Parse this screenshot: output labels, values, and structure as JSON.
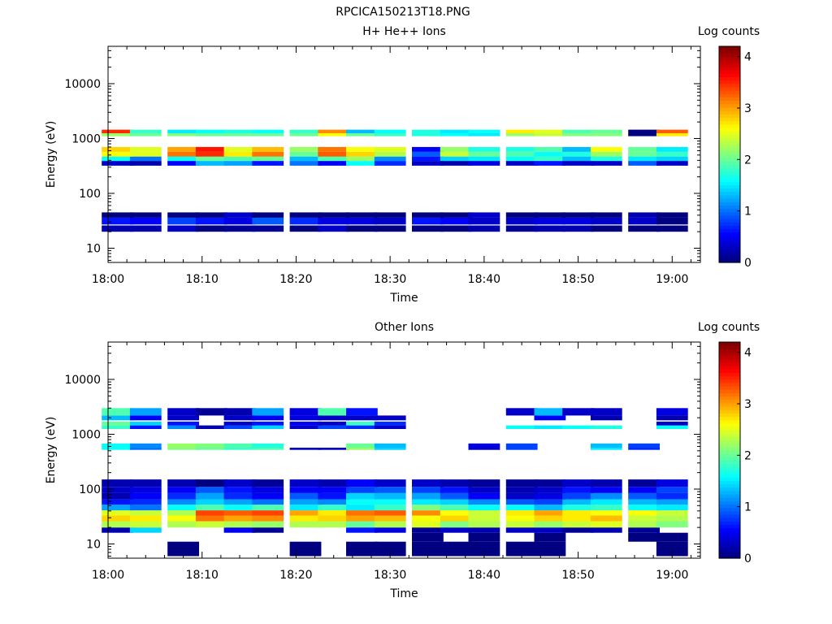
{
  "figure_title": "RPCICA150213T18.PNG",
  "chart_data": [
    {
      "type": "heatmap",
      "title": "H+ He++ Ions",
      "xlabel": "Time",
      "ylabel": "Energy (eV)",
      "x_ticks": [
        "18:00",
        "18:10",
        "18:20",
        "18:30",
        "18:40",
        "18:50",
        "19:00"
      ],
      "x_range": [
        "18:00",
        "19:03"
      ],
      "y_scale": "log",
      "y_ticks": [
        "10",
        "100",
        "1000",
        "10000"
      ],
      "y_range": [
        5.5,
        48000
      ],
      "colorbar": {
        "label": "Log counts",
        "ticks": [
          "0",
          "1",
          "2",
          "3",
          "4"
        ],
        "range": [
          0,
          4.2
        ]
      },
      "time_bins": [
        "18:01",
        "18:04",
        "18:08",
        "18:11",
        "18:14",
        "18:17",
        "18:21",
        "18:24",
        "18:27",
        "18:30",
        "18:34",
        "18:37",
        "18:40",
        "18:44",
        "18:47",
        "18:50",
        "18:53",
        "18:57",
        "19:00"
      ],
      "bands": [
        {
          "emin": 20,
          "emax": 26,
          "values": [
            0.2,
            0.2,
            0.3,
            0.0,
            0.1,
            0.1,
            0.0,
            0.3,
            0.0,
            0.0,
            0.0,
            0.0,
            0.2,
            0.1,
            0.2,
            0.2,
            0.0,
            0.0,
            0.0
          ]
        },
        {
          "emin": 27,
          "emax": 36,
          "values": [
            0.6,
            0.5,
            0.8,
            0.6,
            0.4,
            0.9,
            0.7,
            0.4,
            0.4,
            0.3,
            0.6,
            0.5,
            0.3,
            0.3,
            0.4,
            0.4,
            0.3,
            0.3,
            0.0
          ]
        },
        {
          "emin": 36,
          "emax": 45,
          "values": [
            0.0,
            0.0,
            0.0,
            0.0,
            0.3,
            0.0,
            0.0,
            0.0,
            0.0,
            0.0,
            0.0,
            0.0,
            0.3,
            0.0,
            0.0,
            0.0,
            0.0,
            0.2,
            0.0
          ]
        },
        {
          "emin": 320,
          "emax": 390,
          "values": [
            0.3,
            0.2,
            0.5,
            1.3,
            1.2,
            0.6,
            1.0,
            0.5,
            1.6,
            0.7,
            0.3,
            0.2,
            0.4,
            0.3,
            0.6,
            0.3,
            0.3,
            0.9,
            0.3
          ]
        },
        {
          "emin": 390,
          "emax": 470,
          "values": [
            1.6,
            1.0,
            1.6,
            2.0,
            1.9,
            2.0,
            1.3,
            1.9,
            2.2,
            1.1,
            0.6,
            1.4,
            1.5,
            1.6,
            1.8,
            1.3,
            1.7,
            1.5,
            1.4
          ]
        },
        {
          "emin": 470,
          "emax": 570,
          "values": [
            2.6,
            2.5,
            3.2,
            3.5,
            2.7,
            3.2,
            2.0,
            3.3,
            2.8,
            2.3,
            0.9,
            2.4,
            2.0,
            1.9,
            1.6,
            1.7,
            2.2,
            2.0,
            1.8
          ]
        },
        {
          "emin": 570,
          "emax": 700,
          "values": [
            2.8,
            2.5,
            3.0,
            3.6,
            2.5,
            2.9,
            2.2,
            3.2,
            2.6,
            2.5,
            0.5,
            2.2,
            1.7,
            1.7,
            1.9,
            1.3,
            2.6,
            2.0,
            1.5
          ]
        },
        {
          "emin": 1100,
          "emax": 1250,
          "values": [
            2.2,
            2.0,
            2.1,
            2.0,
            2.0,
            2.0,
            2.0,
            2.6,
            2.0,
            1.8,
            1.7,
            1.6,
            1.5,
            2.2,
            2.4,
            2.1,
            2.1,
            0.0,
            2.7
          ]
        },
        {
          "emin": 1250,
          "emax": 1450,
          "values": [
            3.5,
            1.8,
            1.5,
            1.6,
            1.7,
            1.6,
            1.8,
            3.1,
            1.3,
            1.6,
            1.7,
            1.5,
            1.6,
            2.7,
            2.5,
            1.9,
            2.0,
            0.0,
            3.3
          ]
        }
      ]
    },
    {
      "type": "heatmap",
      "title": "Other Ions",
      "xlabel": "Time",
      "ylabel": "Energy (eV)",
      "x_ticks": [
        "18:00",
        "18:10",
        "18:20",
        "18:30",
        "18:40",
        "18:50",
        "19:00"
      ],
      "x_range": [
        "18:00",
        "19:03"
      ],
      "y_scale": "log",
      "y_ticks": [
        "10",
        "100",
        "1000",
        "10000"
      ],
      "y_range": [
        5.5,
        48000
      ],
      "colorbar": {
        "label": "Log counts",
        "ticks": [
          "0",
          "1",
          "2",
          "3",
          "4"
        ],
        "range": [
          0,
          4.2
        ]
      },
      "time_bins": [
        "18:01",
        "18:04",
        "18:08",
        "18:11",
        "18:14",
        "18:17",
        "18:21",
        "18:24",
        "18:27",
        "18:30",
        "18:34",
        "18:37",
        "18:40",
        "18:44",
        "18:47",
        "18:50",
        "18:53",
        "18:57",
        "19:00"
      ],
      "bands": [
        {
          "emin": 6,
          "emax": 11,
          "values": [
            null,
            null,
            0.0,
            null,
            null,
            null,
            0.0,
            null,
            0.0,
            0.0,
            0.0,
            0.0,
            0.0,
            0.0,
            0.0,
            null,
            null,
            null,
            0.0
          ]
        },
        {
          "emin": 11,
          "emax": 16,
          "values": [
            null,
            null,
            null,
            null,
            null,
            null,
            null,
            null,
            null,
            null,
            0.0,
            null,
            0.0,
            null,
            0.0,
            null,
            null,
            0.0,
            0.0
          ]
        },
        {
          "emin": 16,
          "emax": 20,
          "values": [
            0.2,
            1.4,
            null,
            null,
            0.5,
            0.1,
            null,
            null,
            0.6,
            0.4,
            0.1,
            0.3,
            0.2,
            0.3,
            0.3,
            0.1,
            0.2,
            0.1,
            null
          ]
        },
        {
          "emin": 20,
          "emax": 26,
          "values": [
            2.3,
            2.4,
            2.3,
            2.4,
            2.3,
            2.2,
            2.3,
            2.3,
            2.0,
            2.3,
            2.5,
            2.1,
            2.3,
            2.4,
            2.2,
            2.4,
            2.5,
            2.3,
            2.1
          ]
        },
        {
          "emin": 26,
          "emax": 33,
          "values": [
            2.8,
            2.7,
            2.6,
            3.2,
            3.0,
            3.1,
            2.7,
            2.8,
            3.0,
            2.9,
            2.6,
            2.8,
            2.4,
            2.6,
            2.8,
            2.7,
            2.9,
            2.4,
            2.3
          ]
        },
        {
          "emin": 33,
          "emax": 41,
          "values": [
            2.5,
            2.4,
            2.3,
            3.4,
            3.3,
            3.4,
            3.0,
            2.7,
            3.2,
            3.3,
            3.1,
            2.6,
            2.4,
            2.7,
            3.0,
            2.7,
            2.6,
            2.6,
            2.4
          ]
        },
        {
          "emin": 41,
          "emax": 52,
          "values": [
            1.2,
            1.0,
            1.6,
            1.9,
            1.6,
            1.9,
            1.5,
            1.8,
            1.5,
            1.8,
            2.1,
            1.9,
            1.6,
            1.6,
            1.3,
            1.7,
            1.8,
            1.6,
            1.5
          ]
        },
        {
          "emin": 52,
          "emax": 65,
          "values": [
            0.6,
            0.7,
            1.1,
            1.4,
            1.2,
            1.0,
            1.2,
            1.1,
            1.6,
            1.6,
            1.5,
            1.4,
            1.1,
            0.9,
            0.8,
            1.3,
            1.5,
            1.3,
            1.2
          ]
        },
        {
          "emin": 65,
          "emax": 85,
          "values": [
            0.2,
            0.5,
            0.7,
            1.2,
            0.7,
            0.5,
            0.9,
            0.6,
            1.4,
            1.3,
            1.2,
            0.9,
            0.5,
            0.3,
            0.4,
            0.8,
            1.1,
            0.9,
            0.7
          ]
        },
        {
          "emin": 85,
          "emax": 110,
          "values": [
            0.3,
            0.4,
            0.5,
            0.9,
            0.6,
            0.4,
            0.5,
            0.5,
            0.8,
            0.9,
            0.8,
            0.6,
            0.3,
            0.2,
            0.3,
            0.6,
            0.5,
            0.5,
            0.8
          ]
        },
        {
          "emin": 110,
          "emax": 150,
          "values": [
            0.2,
            0.2,
            0.2,
            0.0,
            0.3,
            0.1,
            0.3,
            0.2,
            0.5,
            0.3,
            0.3,
            0.2,
            0.1,
            0.1,
            0.1,
            0.3,
            0.2,
            0.1,
            0.4
          ]
        },
        {
          "emin": 520,
          "emax": 570,
          "values": [
            1.6,
            1.0,
            2.1,
            2.0,
            1.8,
            1.9,
            0.3,
            0.3,
            2.2,
            1.4,
            null,
            null,
            0.3,
            0.8,
            null,
            null,
            1.5,
            0.7,
            null
          ]
        },
        {
          "emin": 570,
          "emax": 680,
          "values": [
            1.6,
            1.1,
            2.2,
            2.1,
            1.9,
            1.7,
            null,
            null,
            2.0,
            1.3,
            null,
            null,
            0.4,
            0.8,
            null,
            null,
            1.3,
            0.8,
            null
          ]
        },
        {
          "emin": 1250,
          "emax": 1450,
          "values": [
            1.8,
            0.6,
            1.1,
            0.2,
            0.8,
            1.4,
            0.3,
            0.8,
            0.7,
            0.3,
            null,
            null,
            null,
            1.6,
            1.5,
            1.6,
            1.7,
            null,
            1.6
          ]
        },
        {
          "emin": 1450,
          "emax": 1700,
          "values": [
            2.0,
            1.4,
            0.6,
            null,
            0.3,
            0.6,
            0.5,
            0.3,
            1.8,
            0.7,
            null,
            null,
            null,
            null,
            null,
            null,
            null,
            null,
            0.3
          ]
        },
        {
          "emin": 1800,
          "emax": 2200,
          "values": [
            1.3,
            0.5,
            0.3,
            null,
            0.3,
            0.5,
            0.4,
            0.3,
            0.3,
            0.3,
            null,
            null,
            null,
            null,
            0.5,
            null,
            0.2,
            null,
            0.2
          ]
        },
        {
          "emin": 2200,
          "emax": 3000,
          "values": [
            1.9,
            1.2,
            0.3,
            0.1,
            0.2,
            1.2,
            0.4,
            1.9,
            0.6,
            null,
            null,
            null,
            null,
            0.3,
            1.3,
            0.3,
            0.3,
            null,
            0.4
          ]
        }
      ]
    }
  ]
}
